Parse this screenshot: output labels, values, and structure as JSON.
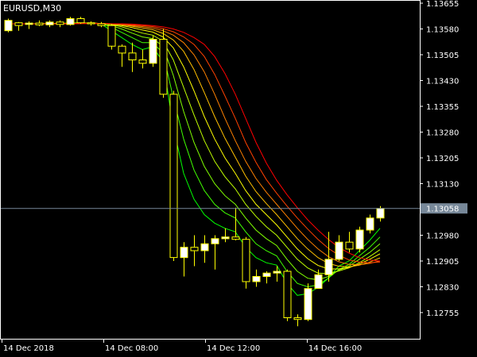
{
  "chart_data": {
    "type": "candlestick",
    "title": "EURUSD,M30",
    "symbol": "EURUSD",
    "timeframe": "M30",
    "background_color": "#000000",
    "foreground_color": "#ffffff",
    "bull_candle_color": "#ffffff",
    "bear_candle_color": "#000000",
    "candle_outline_color": "#ffff00",
    "ylim": [
      1.127,
      1.1366
    ],
    "y_ticks": [
      "1.13655",
      "1.13580",
      "1.13505",
      "1.13430",
      "1.13355",
      "1.13280",
      "1.13205",
      "1.13130",
      "1.12980",
      "1.12905",
      "1.12830",
      "1.12755"
    ],
    "x_ticks": [
      "14 Dec 2018",
      "14 Dec 08:00",
      "14 Dec 12:00",
      "14 Dec 16:00"
    ],
    "current_price": {
      "label": "1.13058",
      "value": 1.13058,
      "line_color": "#778899",
      "box_color": "#778899"
    },
    "candles": [
      {
        "o": 1.13575,
        "h": 1.1361,
        "l": 1.1357,
        "c": 1.13605
      },
      {
        "o": 1.13598,
        "h": 1.136,
        "l": 1.13575,
        "c": 1.1359
      },
      {
        "o": 1.13593,
        "h": 1.13602,
        "l": 1.1358,
        "c": 1.13597
      },
      {
        "o": 1.13597,
        "h": 1.13605,
        "l": 1.13588,
        "c": 1.13592
      },
      {
        "o": 1.13592,
        "h": 1.13605,
        "l": 1.13585,
        "c": 1.136
      },
      {
        "o": 1.136,
        "h": 1.13605,
        "l": 1.13585,
        "c": 1.13593
      },
      {
        "o": 1.13593,
        "h": 1.13615,
        "l": 1.1359,
        "c": 1.1361
      },
      {
        "o": 1.1361,
        "h": 1.13615,
        "l": 1.13595,
        "c": 1.13598
      },
      {
        "o": 1.13598,
        "h": 1.13602,
        "l": 1.1359,
        "c": 1.13595
      },
      {
        "o": 1.13595,
        "h": 1.136,
        "l": 1.13585,
        "c": 1.1359
      },
      {
        "o": 1.1359,
        "h": 1.13595,
        "l": 1.1352,
        "c": 1.1353
      },
      {
        "o": 1.1353,
        "h": 1.13535,
        "l": 1.1347,
        "c": 1.1351
      },
      {
        "o": 1.1351,
        "h": 1.1354,
        "l": 1.13455,
        "c": 1.1349
      },
      {
        "o": 1.1349,
        "h": 1.1352,
        "l": 1.13465,
        "c": 1.1348
      },
      {
        "o": 1.1348,
        "h": 1.1356,
        "l": 1.1347,
        "c": 1.1355
      },
      {
        "o": 1.1355,
        "h": 1.1358,
        "l": 1.1338,
        "c": 1.1339
      },
      {
        "o": 1.1339,
        "h": 1.134,
        "l": 1.12905,
        "c": 1.12915
      },
      {
        "o": 1.12915,
        "h": 1.1296,
        "l": 1.1286,
        "c": 1.12945
      },
      {
        "o": 1.12945,
        "h": 1.1298,
        "l": 1.1289,
        "c": 1.12935
      },
      {
        "o": 1.12935,
        "h": 1.1298,
        "l": 1.129,
        "c": 1.12955
      },
      {
        "o": 1.12955,
        "h": 1.1298,
        "l": 1.1288,
        "c": 1.1297
      },
      {
        "o": 1.1297,
        "h": 1.13,
        "l": 1.1296,
        "c": 1.12975
      },
      {
        "o": 1.12975,
        "h": 1.1306,
        "l": 1.12965,
        "c": 1.12968
      },
      {
        "o": 1.12968,
        "h": 1.12975,
        "l": 1.12825,
        "c": 1.12845
      },
      {
        "o": 1.12845,
        "h": 1.1288,
        "l": 1.1283,
        "c": 1.1286
      },
      {
        "o": 1.1286,
        "h": 1.12875,
        "l": 1.1284,
        "c": 1.1287
      },
      {
        "o": 1.1287,
        "h": 1.1289,
        "l": 1.12845,
        "c": 1.12875
      },
      {
        "o": 1.12875,
        "h": 1.1288,
        "l": 1.1273,
        "c": 1.1274
      },
      {
        "o": 1.1274,
        "h": 1.1275,
        "l": 1.12715,
        "c": 1.12735
      },
      {
        "o": 1.12735,
        "h": 1.1284,
        "l": 1.1273,
        "c": 1.12825
      },
      {
        "o": 1.12825,
        "h": 1.1288,
        "l": 1.1283,
        "c": 1.12865
      },
      {
        "o": 1.12865,
        "h": 1.1299,
        "l": 1.12845,
        "c": 1.1291
      },
      {
        "o": 1.1291,
        "h": 1.1298,
        "l": 1.12905,
        "c": 1.1296
      },
      {
        "o": 1.1296,
        "h": 1.1299,
        "l": 1.1293,
        "c": 1.1294
      },
      {
        "o": 1.1294,
        "h": 1.13005,
        "l": 1.1293,
        "c": 1.12995
      },
      {
        "o": 1.12995,
        "h": 1.1304,
        "l": 1.12985,
        "c": 1.1303
      },
      {
        "o": 1.1303,
        "h": 1.13065,
        "l": 1.1302,
        "c": 1.13058
      }
    ],
    "moving_averages": [
      {
        "color": "#00ff00",
        "values": [
          1.13595,
          1.13595,
          1.13595,
          1.13596,
          1.13596,
          1.13595,
          1.13598,
          1.13598,
          1.13597,
          1.13595,
          1.13575,
          1.13555,
          1.13535,
          1.1352,
          1.13528,
          1.13485,
          1.13295,
          1.1316,
          1.13085,
          1.1304,
          1.13015,
          1.13,
          1.1299,
          1.12945,
          1.12915,
          1.129,
          1.12893,
          1.1284,
          1.12805,
          1.1281,
          1.12828,
          1.12855,
          1.1289,
          1.12905,
          1.12935,
          1.12965,
          1.13
        ]
      },
      {
        "color": "#40ff00",
        "values": [
          1.13595,
          1.13595,
          1.13595,
          1.13596,
          1.13596,
          1.13596,
          1.13597,
          1.13597,
          1.13597,
          1.13596,
          1.13585,
          1.1357,
          1.13555,
          1.1354,
          1.1354,
          1.1351,
          1.1338,
          1.1326,
          1.1317,
          1.1311,
          1.1307,
          1.13045,
          1.1303,
          1.1299,
          1.12955,
          1.12935,
          1.1292,
          1.12875,
          1.1284,
          1.1283,
          1.12835,
          1.12855,
          1.1288,
          1.12895,
          1.1292,
          1.12945,
          1.12975
        ]
      },
      {
        "color": "#80ff00",
        "values": [
          1.13595,
          1.13595,
          1.13595,
          1.13595,
          1.13596,
          1.13596,
          1.13597,
          1.13597,
          1.13597,
          1.13596,
          1.1359,
          1.1358,
          1.13568,
          1.13557,
          1.13552,
          1.1353,
          1.13445,
          1.1334,
          1.1325,
          1.1318,
          1.1313,
          1.13095,
          1.1307,
          1.1303,
          1.12995,
          1.1297,
          1.1295,
          1.1291,
          1.12875,
          1.12855,
          1.1285,
          1.1286,
          1.12878,
          1.1289,
          1.1291,
          1.1293,
          1.12955
        ]
      },
      {
        "color": "#c0ff00",
        "values": [
          1.13595,
          1.13595,
          1.13595,
          1.13595,
          1.13596,
          1.13596,
          1.13596,
          1.13597,
          1.13597,
          1.13596,
          1.13593,
          1.13586,
          1.13577,
          1.13568,
          1.13562,
          1.13545,
          1.1349,
          1.1341,
          1.1333,
          1.13255,
          1.13195,
          1.1315,
          1.13115,
          1.1307,
          1.13035,
          1.13005,
          1.1298,
          1.12945,
          1.1291,
          1.12885,
          1.1287,
          1.12868,
          1.12876,
          1.12885,
          1.129,
          1.12918,
          1.12938
        ]
      },
      {
        "color": "#ffff00",
        "values": [
          1.13595,
          1.13595,
          1.13595,
          1.13595,
          1.13595,
          1.13596,
          1.13596,
          1.13597,
          1.13597,
          1.13596,
          1.13594,
          1.1359,
          1.13584,
          1.13577,
          1.13571,
          1.13557,
          1.13525,
          1.1347,
          1.134,
          1.13325,
          1.1326,
          1.13205,
          1.1316,
          1.1311,
          1.1307,
          1.1304,
          1.1301,
          1.12975,
          1.1294,
          1.12912,
          1.12892,
          1.12882,
          1.12882,
          1.12886,
          1.12896,
          1.1291,
          1.12926
        ]
      },
      {
        "color": "#ffc000",
        "values": [
          1.13595,
          1.13595,
          1.13595,
          1.13595,
          1.13595,
          1.13596,
          1.13596,
          1.13596,
          1.13597,
          1.13596,
          1.13595,
          1.13592,
          1.13588,
          1.13583,
          1.13578,
          1.13567,
          1.13548,
          1.13515,
          1.13462,
          1.13395,
          1.13325,
          1.13262,
          1.13207,
          1.13152,
          1.13107,
          1.13072,
          1.1304,
          1.13005,
          1.1297,
          1.1294,
          1.12915,
          1.12898,
          1.1289,
          1.12888,
          1.12893,
          1.12902,
          1.12914
        ]
      },
      {
        "color": "#ff8000",
        "values": [
          1.13595,
          1.13595,
          1.13595,
          1.13595,
          1.13595,
          1.13595,
          1.13596,
          1.13596,
          1.13596,
          1.13596,
          1.13595,
          1.13593,
          1.1359,
          1.13587,
          1.13583,
          1.13575,
          1.13562,
          1.1354,
          1.13505,
          1.13455,
          1.1339,
          1.1332,
          1.13255,
          1.13195,
          1.13145,
          1.13105,
          1.1307,
          1.13035,
          1.13,
          1.12968,
          1.1294,
          1.12918,
          1.12903,
          1.12895,
          1.12894,
          1.12898,
          1.12905
        ]
      },
      {
        "color": "#ff4000",
        "values": [
          1.13595,
          1.13595,
          1.13595,
          1.13595,
          1.13595,
          1.13595,
          1.13596,
          1.13596,
          1.13596,
          1.13596,
          1.13595,
          1.13594,
          1.13592,
          1.1359,
          1.13587,
          1.13581,
          1.13572,
          1.13557,
          1.13535,
          1.135,
          1.13448,
          1.13385,
          1.1332,
          1.1325,
          1.13192,
          1.13142,
          1.13102,
          1.13065,
          1.1303,
          1.12998,
          1.12968,
          1.12942,
          1.12922,
          1.12908,
          1.12902,
          1.129,
          1.12902
        ]
      },
      {
        "color": "#ff0000",
        "values": [
          1.13595,
          1.13595,
          1.13595,
          1.13595,
          1.13595,
          1.13595,
          1.13595,
          1.13596,
          1.13596,
          1.13596,
          1.13595,
          1.13595,
          1.13594,
          1.13592,
          1.1359,
          1.13586,
          1.1358,
          1.1357,
          1.13555,
          1.13535,
          1.135,
          1.1345,
          1.1339,
          1.1332,
          1.1325,
          1.1319,
          1.1314,
          1.13098,
          1.1306,
          1.13025,
          1.12995,
          1.12968,
          1.12945,
          1.12928,
          1.12915,
          1.12908,
          1.12905
        ]
      }
    ]
  }
}
